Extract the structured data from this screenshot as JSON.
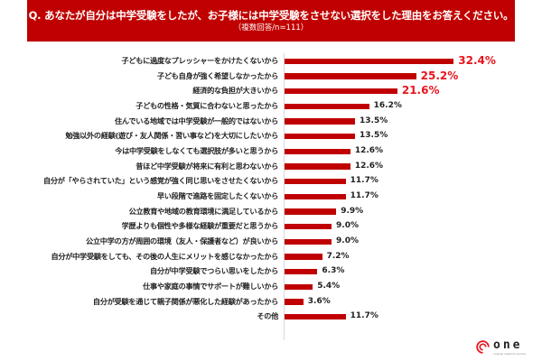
{
  "header": {
    "question": "Q. あなたが自分は中学受験をしたが、お子様には中学受験をさせない選択をした理由をお答えください。",
    "note": "（複数回答/n=111）"
  },
  "colors": {
    "bar": "#c00000",
    "highlight_label": "#e8141e",
    "banner": "#c00000"
  },
  "chart_data": {
    "type": "bar",
    "orientation": "horizontal",
    "title": "Q. あなたが自分は中学受験をしたが、お子様には中学受験をさせない選択をした理由をお答えください。",
    "subtitle": "（複数回答/n=111）",
    "xlabel": "",
    "ylabel": "",
    "unit": "%",
    "grid": false,
    "legend": null,
    "categories": [
      "子どもに過度なプレッシャーをかけたくないから",
      "子ども自身が強く希望しなかったから",
      "経済的な負担が大きいから",
      "子どもの性格・気質に合わないと思ったから",
      "住んでいる地域では中学受験が一般的ではないから",
      "勉強以外の経験(遊び・友人関係・習い事など)を大切にしたいから",
      "今は中学受験をしなくても選択肢が多いと思うから",
      "昔ほど中学受験が将来に有利と思わないから",
      "自分が「やらされていた」という感覚が強く同じ思いをさせたくないから",
      "早い段階で進路を固定したくないから",
      "公立教育や地域の教育環境に満足しているから",
      "学歴よりも個性や多様な経験が重要だと思うから",
      "公立中学の方が周囲の環境（友人・保護者など）が良いから",
      "自分が中学受験をしても、その後の人生にメリットを感じなかったから",
      "自分が中学受験でつらい思いをしたから",
      "仕事や家庭の事情でサポートが難しいから",
      "自分が受験を通じて親子関係が悪化した経験があったから",
      "その他"
    ],
    "values": [
      32.4,
      25.2,
      21.6,
      16.2,
      13.5,
      13.5,
      12.6,
      12.6,
      11.7,
      11.7,
      9.9,
      9.0,
      9.0,
      7.2,
      6.3,
      5.4,
      3.6,
      11.7
    ],
    "value_labels": [
      "32.4%",
      "25.2%",
      "21.6%",
      "16.2%",
      "13.5%",
      "13.5%",
      "12.6%",
      "12.6%",
      "11.7%",
      "11.7%",
      "9.9%",
      "9.0%",
      "9.0%",
      "7.2%",
      "6.3%",
      "5.4%",
      "3.6%",
      "11.7%"
    ],
    "highlighted": [
      true,
      true,
      true,
      false,
      false,
      false,
      false,
      false,
      false,
      false,
      false,
      false,
      false,
      false,
      false,
      false,
      false,
      false
    ]
  },
  "logo": {
    "name": "one",
    "tagline": "original network service"
  }
}
